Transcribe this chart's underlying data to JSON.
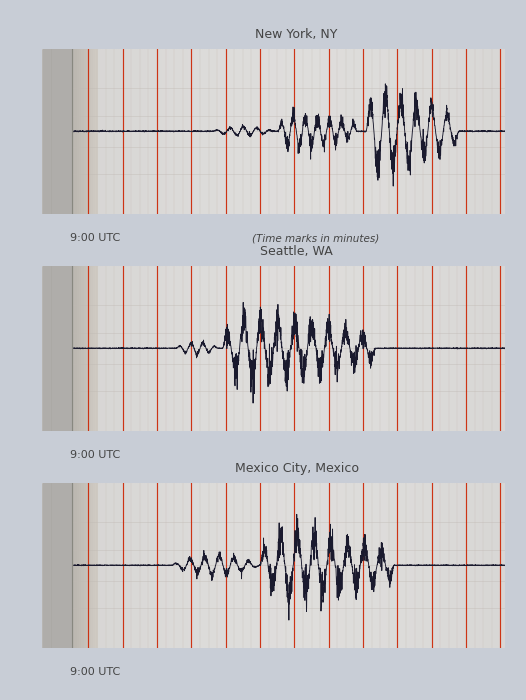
{
  "bg_color": "#c8cdd6",
  "paper_color": "#dcdad6",
  "paper_mid": "#d0cecc",
  "paper_dark": "#b8b4b0",
  "paper_white": "#f0eeec",
  "cylinder_color": "#e8e6e4",
  "red_line_color": "#cc2200",
  "gray_line_color": "#c8c0b8",
  "seismo_color": "#1a1a2e",
  "title_color": "#444444",
  "label_color": "#444444",
  "stations": [
    "New York, NY",
    "Seattle, WA",
    "Mexico City, Mexico"
  ],
  "time_label": "9:00 UTC",
  "time_note": "(Time marks in minutes)"
}
